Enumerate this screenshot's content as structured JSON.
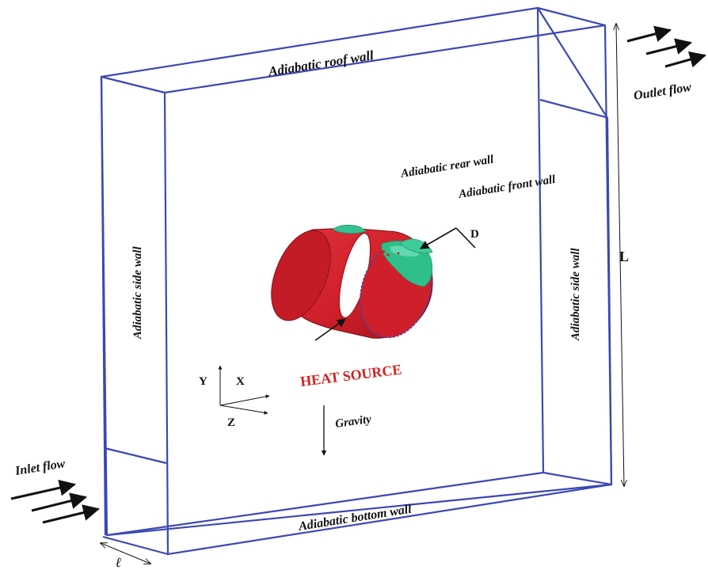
{
  "labels": {
    "roof": "Adiabatic roof wall",
    "rear": "Adiabatic rear wall",
    "front": "Adiabatic front wall",
    "side_left": "Adiabatic side wall",
    "side_right": "Adiabatic side wall",
    "bottom": "Adiabatic bottom wall",
    "inlet": "Inlet flow",
    "outlet": "Outlet flow",
    "heat_source": "HEAT SOURCE",
    "gravity": "Gravity",
    "length": "L",
    "depth_symbol": "ℓ",
    "diameter": "D"
  },
  "axes": {
    "x": "X",
    "y": "Y",
    "z": "Z"
  },
  "colors": {
    "box_edge": "#3a48b4",
    "cylinder": "#d1202b",
    "cylinder_dark": "#8e1018",
    "patch": "#2fbf8a",
    "heat_text": "#d42020",
    "arrow": "#111111"
  }
}
